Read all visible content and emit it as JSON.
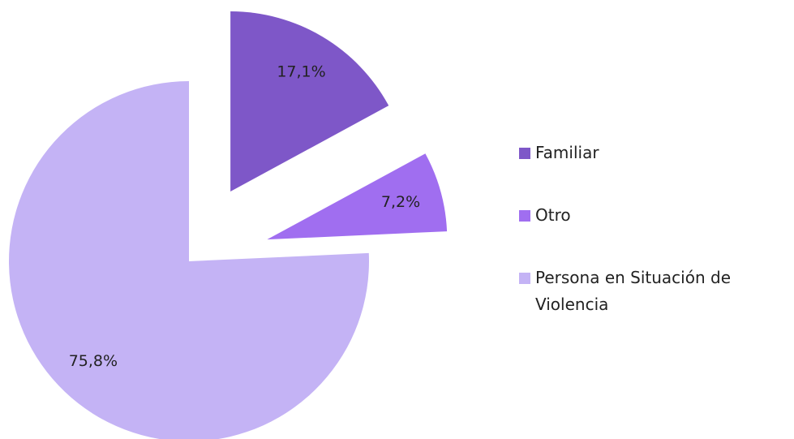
{
  "chart_data": {
    "type": "pie",
    "categories": [
      "Familiar",
      "Otro",
      "Persona en Situación de Violencia"
    ],
    "values": [
      17.1,
      7.2,
      75.8
    ],
    "value_labels": [
      "17,1%",
      "7,2%",
      "75,8%"
    ],
    "colors": [
      "#7e57c8",
      "#a06ef0",
      "#c4b3f5"
    ],
    "legend": "right"
  }
}
